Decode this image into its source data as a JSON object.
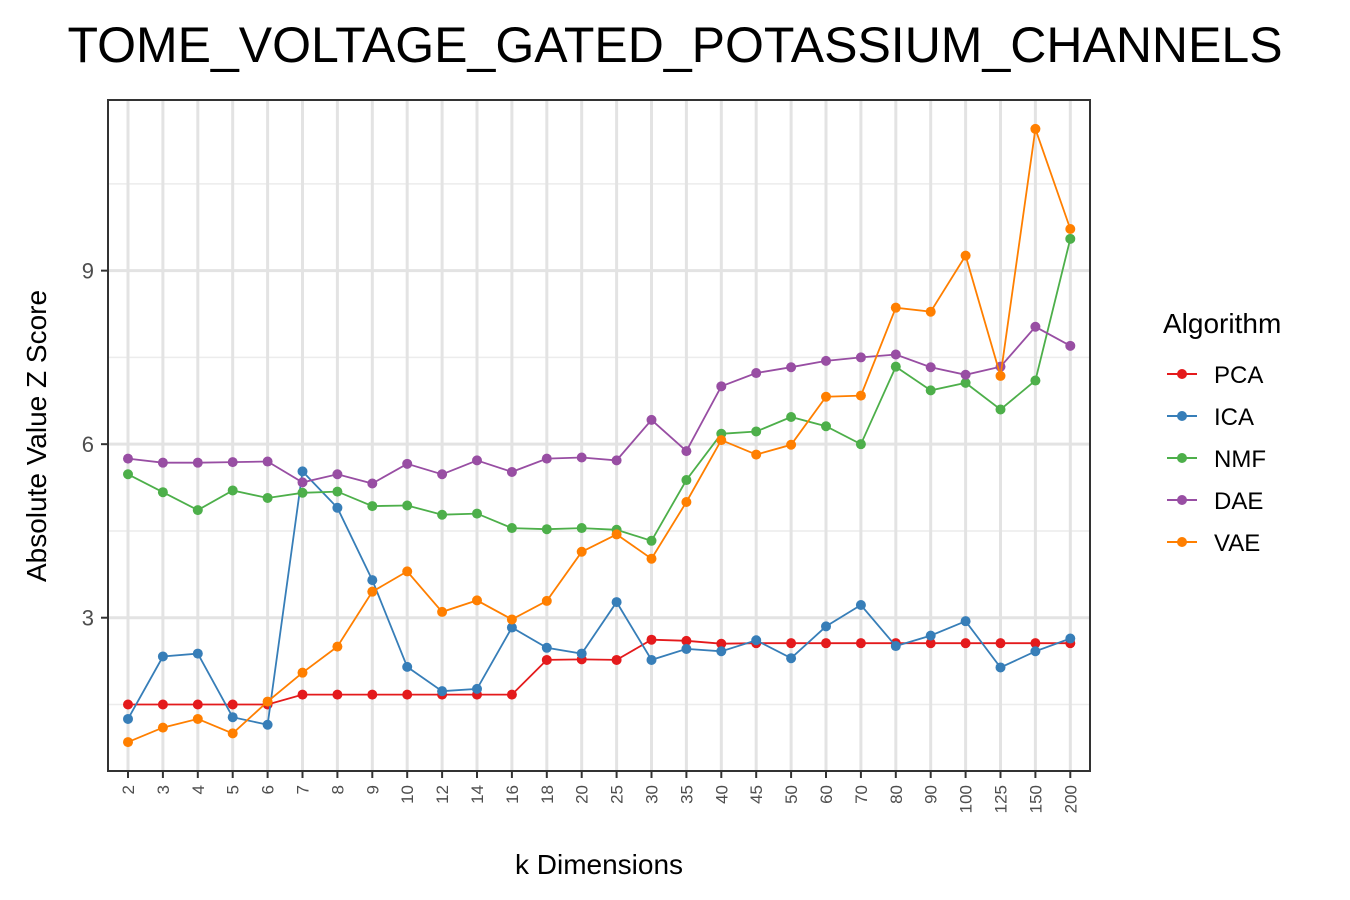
{
  "chart_data": {
    "type": "line",
    "title": "TOME_VOLTAGE_GATED_POTASSIUM_CHANNELS",
    "xlabel": "k Dimensions",
    "ylabel": "Absolute Value Z Score",
    "categories": [
      "2",
      "3",
      "4",
      "5",
      "6",
      "7",
      "8",
      "9",
      "10",
      "12",
      "14",
      "16",
      "18",
      "20",
      "25",
      "30",
      "35",
      "40",
      "45",
      "50",
      "60",
      "70",
      "80",
      "90",
      "100",
      "125",
      "150",
      "200"
    ],
    "yticks": [
      3,
      6,
      9
    ],
    "ylim": [
      0.35,
      11.95
    ],
    "grid": true,
    "legend": {
      "title": "Algorithm",
      "position": "right"
    },
    "series": [
      {
        "name": "PCA",
        "color": "#e41a1c",
        "values": [
          1.5,
          1.5,
          1.5,
          1.5,
          1.5,
          1.67,
          1.67,
          1.67,
          1.67,
          1.67,
          1.67,
          1.67,
          2.27,
          2.28,
          2.27,
          2.62,
          2.6,
          2.55,
          2.56,
          2.56,
          2.56,
          2.56,
          2.56,
          2.56,
          2.56,
          2.56,
          2.56,
          2.56
        ]
      },
      {
        "name": "ICA",
        "color": "#377eb8",
        "values": [
          1.25,
          2.33,
          2.38,
          1.28,
          1.15,
          5.53,
          4.9,
          3.65,
          2.15,
          1.73,
          1.77,
          2.83,
          2.48,
          2.38,
          3.27,
          2.27,
          2.46,
          2.42,
          2.61,
          2.3,
          2.85,
          3.22,
          2.51,
          2.69,
          2.94,
          2.14,
          2.42,
          2.64
        ]
      },
      {
        "name": "NMF",
        "color": "#4daf4a",
        "values": [
          5.48,
          5.17,
          4.86,
          5.2,
          5.07,
          5.16,
          5.18,
          4.93,
          4.94,
          4.78,
          4.8,
          4.55,
          4.53,
          4.55,
          4.52,
          4.33,
          5.38,
          6.18,
          6.22,
          6.47,
          6.31,
          6.0,
          7.34,
          6.93,
          7.06,
          6.6,
          7.1,
          9.55
        ]
      },
      {
        "name": "DAE",
        "color": "#984ea3",
        "values": [
          5.75,
          5.68,
          5.68,
          5.69,
          5.7,
          5.34,
          5.48,
          5.32,
          5.66,
          5.48,
          5.72,
          5.52,
          5.75,
          5.77,
          5.72,
          6.42,
          5.88,
          7.0,
          7.23,
          7.33,
          7.44,
          7.5,
          7.55,
          7.33,
          7.2,
          7.34,
          8.03,
          7.7
        ]
      },
      {
        "name": "VAE",
        "color": "#ff7f00",
        "values": [
          0.85,
          1.1,
          1.25,
          1.0,
          1.55,
          2.05,
          2.5,
          3.45,
          3.8,
          3.1,
          3.3,
          2.97,
          3.29,
          4.14,
          4.44,
          4.02,
          5.0,
          6.07,
          5.82,
          5.99,
          6.82,
          6.84,
          8.36,
          8.29,
          9.26,
          7.18,
          11.45,
          9.72
        ]
      }
    ]
  }
}
